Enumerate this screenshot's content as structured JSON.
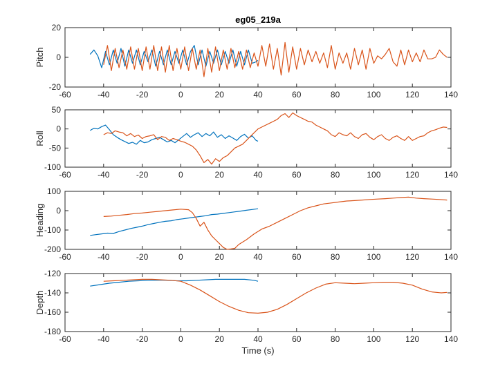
{
  "chart_data": {
    "type": "line",
    "title": "eg05_219a",
    "xlabel": "Time (s)",
    "series_colors": [
      "#0072BD",
      "#D95319"
    ],
    "panels": [
      {
        "ylabel": "Pitch",
        "xlim": [
          -60,
          140
        ],
        "ylim": [
          -20,
          20
        ],
        "xticks": [
          -60,
          -40,
          -20,
          0,
          20,
          40,
          60,
          80,
          100,
          120,
          140
        ],
        "yticks": [
          -20,
          0,
          20
        ],
        "series": [
          {
            "x": [
              -47,
              -45,
              -43,
              -41,
              -39,
              -37,
              -35,
              -33,
              -31,
              -29,
              -27,
              -25,
              -23,
              -21,
              -19,
              -17,
              -15,
              -13,
              -11,
              -9,
              -7,
              -5,
              -3,
              -1,
              1,
              3,
              5,
              7,
              9,
              11,
              13,
              15,
              17,
              19,
              21,
              23,
              25,
              27,
              29,
              31,
              33,
              35,
              37,
              39,
              40
            ],
            "y": [
              2,
              5,
              1,
              -7,
              4,
              -5,
              5,
              -4,
              6,
              -6,
              5,
              -4,
              5,
              -5,
              4,
              -3,
              5,
              -6,
              4,
              -5,
              5,
              -5,
              4,
              -4,
              5,
              -5,
              4,
              8,
              -5,
              5,
              -6,
              4,
              -4,
              5,
              -5,
              4,
              -4,
              5,
              -6,
              4,
              -5,
              5,
              -4,
              -3,
              -2
            ]
          },
          {
            "x": [
              -40,
              -38,
              -36,
              -34,
              -32,
              -30,
              -28,
              -26,
              -24,
              -22,
              -20,
              -18,
              -16,
              -14,
              -12,
              -10,
              -8,
              -6,
              -4,
              -2,
              0,
              2,
              4,
              6,
              8,
              10,
              12,
              14,
              16,
              18,
              20,
              22,
              24,
              26,
              28,
              30,
              32,
              34,
              36,
              38,
              40,
              42,
              44,
              46,
              48,
              50,
              52,
              54,
              56,
              58,
              60,
              62,
              64,
              66,
              68,
              70,
              72,
              74,
              76,
              78,
              80,
              82,
              84,
              86,
              88,
              90,
              92,
              94,
              96,
              98,
              100,
              102,
              104,
              106,
              108,
              110,
              112,
              114,
              116,
              118,
              120,
              122,
              124,
              126,
              128,
              130,
              132,
              134,
              136,
              138
            ],
            "y": [
              -5,
              8,
              -9,
              6,
              -7,
              5,
              -8,
              7,
              -8,
              6,
              -9,
              7,
              -8,
              8,
              -9,
              7,
              -10,
              8,
              -9,
              6,
              -8,
              7,
              -9,
              6,
              -8,
              5,
              -13,
              6,
              -10,
              7,
              -9,
              5,
              -8,
              6,
              -7,
              4,
              -8,
              5,
              -7,
              3,
              -6,
              8,
              -6,
              9,
              -8,
              6,
              -12,
              10,
              -10,
              7,
              -8,
              6,
              -5,
              5,
              -3,
              4,
              -4,
              3,
              -7,
              8,
              -8,
              3,
              -4,
              3,
              -8,
              6,
              -5,
              5,
              -8,
              6,
              -4,
              1,
              -1,
              2,
              6,
              -3,
              -6,
              5,
              -5,
              5,
              -3,
              3,
              -3,
              5,
              -1,
              -1,
              0,
              5,
              2,
              0
            ]
          }
        ]
      },
      {
        "ylabel": "Roll",
        "xlim": [
          -60,
          140
        ],
        "ylim": [
          -100,
          50
        ],
        "xticks": [
          -60,
          -40,
          -20,
          0,
          20,
          40,
          60,
          80,
          100,
          120,
          140
        ],
        "yticks": [
          -100,
          -50,
          0,
          50
        ],
        "series": [
          {
            "x": [
              -47,
              -45,
              -43,
              -41,
              -39,
              -37,
              -35,
              -33,
              -31,
              -29,
              -27,
              -25,
              -23,
              -21,
              -19,
              -17,
              -15,
              -13,
              -11,
              -9,
              -7,
              -5,
              -3,
              -1,
              1,
              3,
              5,
              7,
              9,
              11,
              13,
              15,
              17,
              19,
              21,
              23,
              25,
              27,
              29,
              31,
              33,
              35,
              37,
              39,
              40
            ],
            "y": [
              -4,
              2,
              0,
              6,
              10,
              -2,
              -15,
              -22,
              -28,
              -33,
              -38,
              -35,
              -40,
              -30,
              -36,
              -34,
              -28,
              -25,
              -22,
              -28,
              -34,
              -30,
              -36,
              -28,
              -20,
              -12,
              -22,
              -15,
              -10,
              -20,
              -12,
              -18,
              -8,
              -22,
              -15,
              -25,
              -18,
              -24,
              -30,
              -20,
              -14,
              -24,
              -18,
              -30,
              -32
            ]
          },
          {
            "x": [
              -40,
              -38,
              -36,
              -34,
              -32,
              -30,
              -28,
              -26,
              -24,
              -22,
              -20,
              -18,
              -16,
              -14,
              -12,
              -10,
              -8,
              -6,
              -4,
              -2,
              0,
              2,
              4,
              6,
              8,
              10,
              12,
              14,
              16,
              18,
              20,
              22,
              24,
              26,
              28,
              30,
              32,
              34,
              36,
              38,
              40,
              42,
              44,
              46,
              48,
              50,
              52,
              54,
              56,
              58,
              60,
              62,
              64,
              66,
              68,
              70,
              72,
              74,
              76,
              78,
              80,
              82,
              84,
              86,
              88,
              90,
              92,
              94,
              96,
              98,
              100,
              102,
              104,
              106,
              108,
              110,
              112,
              114,
              116,
              118,
              120,
              122,
              124,
              126,
              128,
              130,
              132,
              134,
              136,
              138
            ],
            "y": [
              -15,
              -10,
              -12,
              -5,
              -8,
              -10,
              -18,
              -12,
              -20,
              -16,
              -25,
              -20,
              -18,
              -15,
              -28,
              -20,
              -22,
              -30,
              -25,
              -28,
              -32,
              -35,
              -40,
              -45,
              -55,
              -70,
              -88,
              -80,
              -92,
              -78,
              -85,
              -75,
              -70,
              -60,
              -50,
              -45,
              -40,
              -30,
              -20,
              -10,
              0,
              5,
              10,
              15,
              20,
              25,
              35,
              40,
              30,
              42,
              35,
              30,
              25,
              20,
              18,
              10,
              5,
              0,
              -5,
              -15,
              -20,
              -10,
              -15,
              -18,
              -10,
              -20,
              -25,
              -15,
              -12,
              -22,
              -28,
              -20,
              -15,
              -25,
              -30,
              -22,
              -18,
              -25,
              -30,
              -20,
              -30,
              -25,
              -20,
              -18,
              -10,
              -5,
              -2,
              2,
              5,
              4
            ]
          }
        ]
      },
      {
        "ylabel": "Heading",
        "xlim": [
          -60,
          140
        ],
        "ylim": [
          -200,
          100
        ],
        "xticks": [
          -60,
          -40,
          -20,
          0,
          20,
          40,
          60,
          80,
          100,
          120,
          140
        ],
        "yticks": [
          -200,
          -100,
          0,
          100
        ],
        "series": [
          {
            "x": [
              -47,
              -44,
              -41,
              -38,
              -35,
              -32,
              -29,
              -26,
              -23,
              -20,
              -17,
              -14,
              -11,
              -8,
              -5,
              -2,
              1,
              4,
              7,
              10,
              13,
              16,
              19,
              22,
              25,
              28,
              31,
              34,
              37,
              40
            ],
            "y": [
              -128,
              -124,
              -120,
              -116,
              -118,
              -108,
              -100,
              -92,
              -86,
              -80,
              -72,
              -66,
              -60,
              -55,
              -52,
              -46,
              -42,
              -38,
              -34,
              -30,
              -26,
              -20,
              -18,
              -14,
              -10,
              -6,
              -2,
              2,
              6,
              10
            ]
          },
          {
            "x": [
              -40,
              -36,
              -32,
              -28,
              -24,
              -20,
              -16,
              -12,
              -8,
              -4,
              0,
              4,
              6,
              8,
              10,
              12,
              14,
              16,
              18,
              20,
              22,
              24,
              26,
              28,
              30,
              34,
              38,
              42,
              46,
              50,
              54,
              58,
              62,
              66,
              70,
              74,
              78,
              82,
              86,
              90,
              94,
              98,
              102,
              106,
              110,
              114,
              118,
              122,
              126,
              130,
              134,
              138
            ],
            "y": [
              -30,
              -28,
              -24,
              -20,
              -15,
              -12,
              -8,
              -4,
              0,
              4,
              8,
              5,
              -10,
              -40,
              -80,
              -60,
              -100,
              -130,
              -150,
              -170,
              -190,
              -200,
              -198,
              -195,
              -175,
              -150,
              -120,
              -95,
              -80,
              -60,
              -40,
              -20,
              0,
              15,
              25,
              35,
              40,
              45,
              50,
              52,
              55,
              58,
              60,
              62,
              65,
              68,
              70,
              65,
              62,
              60,
              58,
              55
            ]
          }
        ]
      },
      {
        "ylabel": "Depth",
        "xlim": [
          -60,
          140
        ],
        "ylim": [
          -180,
          -120
        ],
        "xticks": [
          -60,
          -40,
          -20,
          0,
          20,
          40,
          60,
          80,
          100,
          120,
          140
        ],
        "yticks": [
          -180,
          -160,
          -140,
          -120
        ],
        "series": [
          {
            "x": [
              -47,
              -42,
              -37,
              -32,
              -27,
              -22,
              -17,
              -12,
              -7,
              -2,
              3,
              8,
              13,
              18,
              23,
              28,
              33,
              38,
              40
            ],
            "y": [
              -133,
              -131.5,
              -130,
              -129,
              -128,
              -127.5,
              -127,
              -126.8,
              -127,
              -127.5,
              -127.5,
              -127,
              -126.5,
              -126,
              -126,
              -126,
              -126,
              -127,
              -128
            ]
          },
          {
            "x": [
              -40,
              -35,
              -30,
              -25,
              -20,
              -15,
              -10,
              -5,
              0,
              5,
              10,
              15,
              20,
              25,
              30,
              35,
              40,
              45,
              50,
              55,
              60,
              65,
              70,
              75,
              80,
              85,
              90,
              95,
              100,
              105,
              110,
              115,
              120,
              125,
              130,
              135,
              138
            ],
            "y": [
              -128,
              -127.5,
              -127,
              -126.5,
              -126,
              -126,
              -126.5,
              -127,
              -128,
              -132,
              -137,
              -143,
              -149,
              -154,
              -158,
              -160.5,
              -161,
              -160,
              -157,
              -152,
              -146,
              -140,
              -135,
              -131,
              -129.5,
              -130,
              -130.5,
              -130,
              -129.5,
              -129,
              -129,
              -130,
              -132,
              -136,
              -139,
              -140,
              -139.5
            ]
          }
        ]
      }
    ]
  }
}
